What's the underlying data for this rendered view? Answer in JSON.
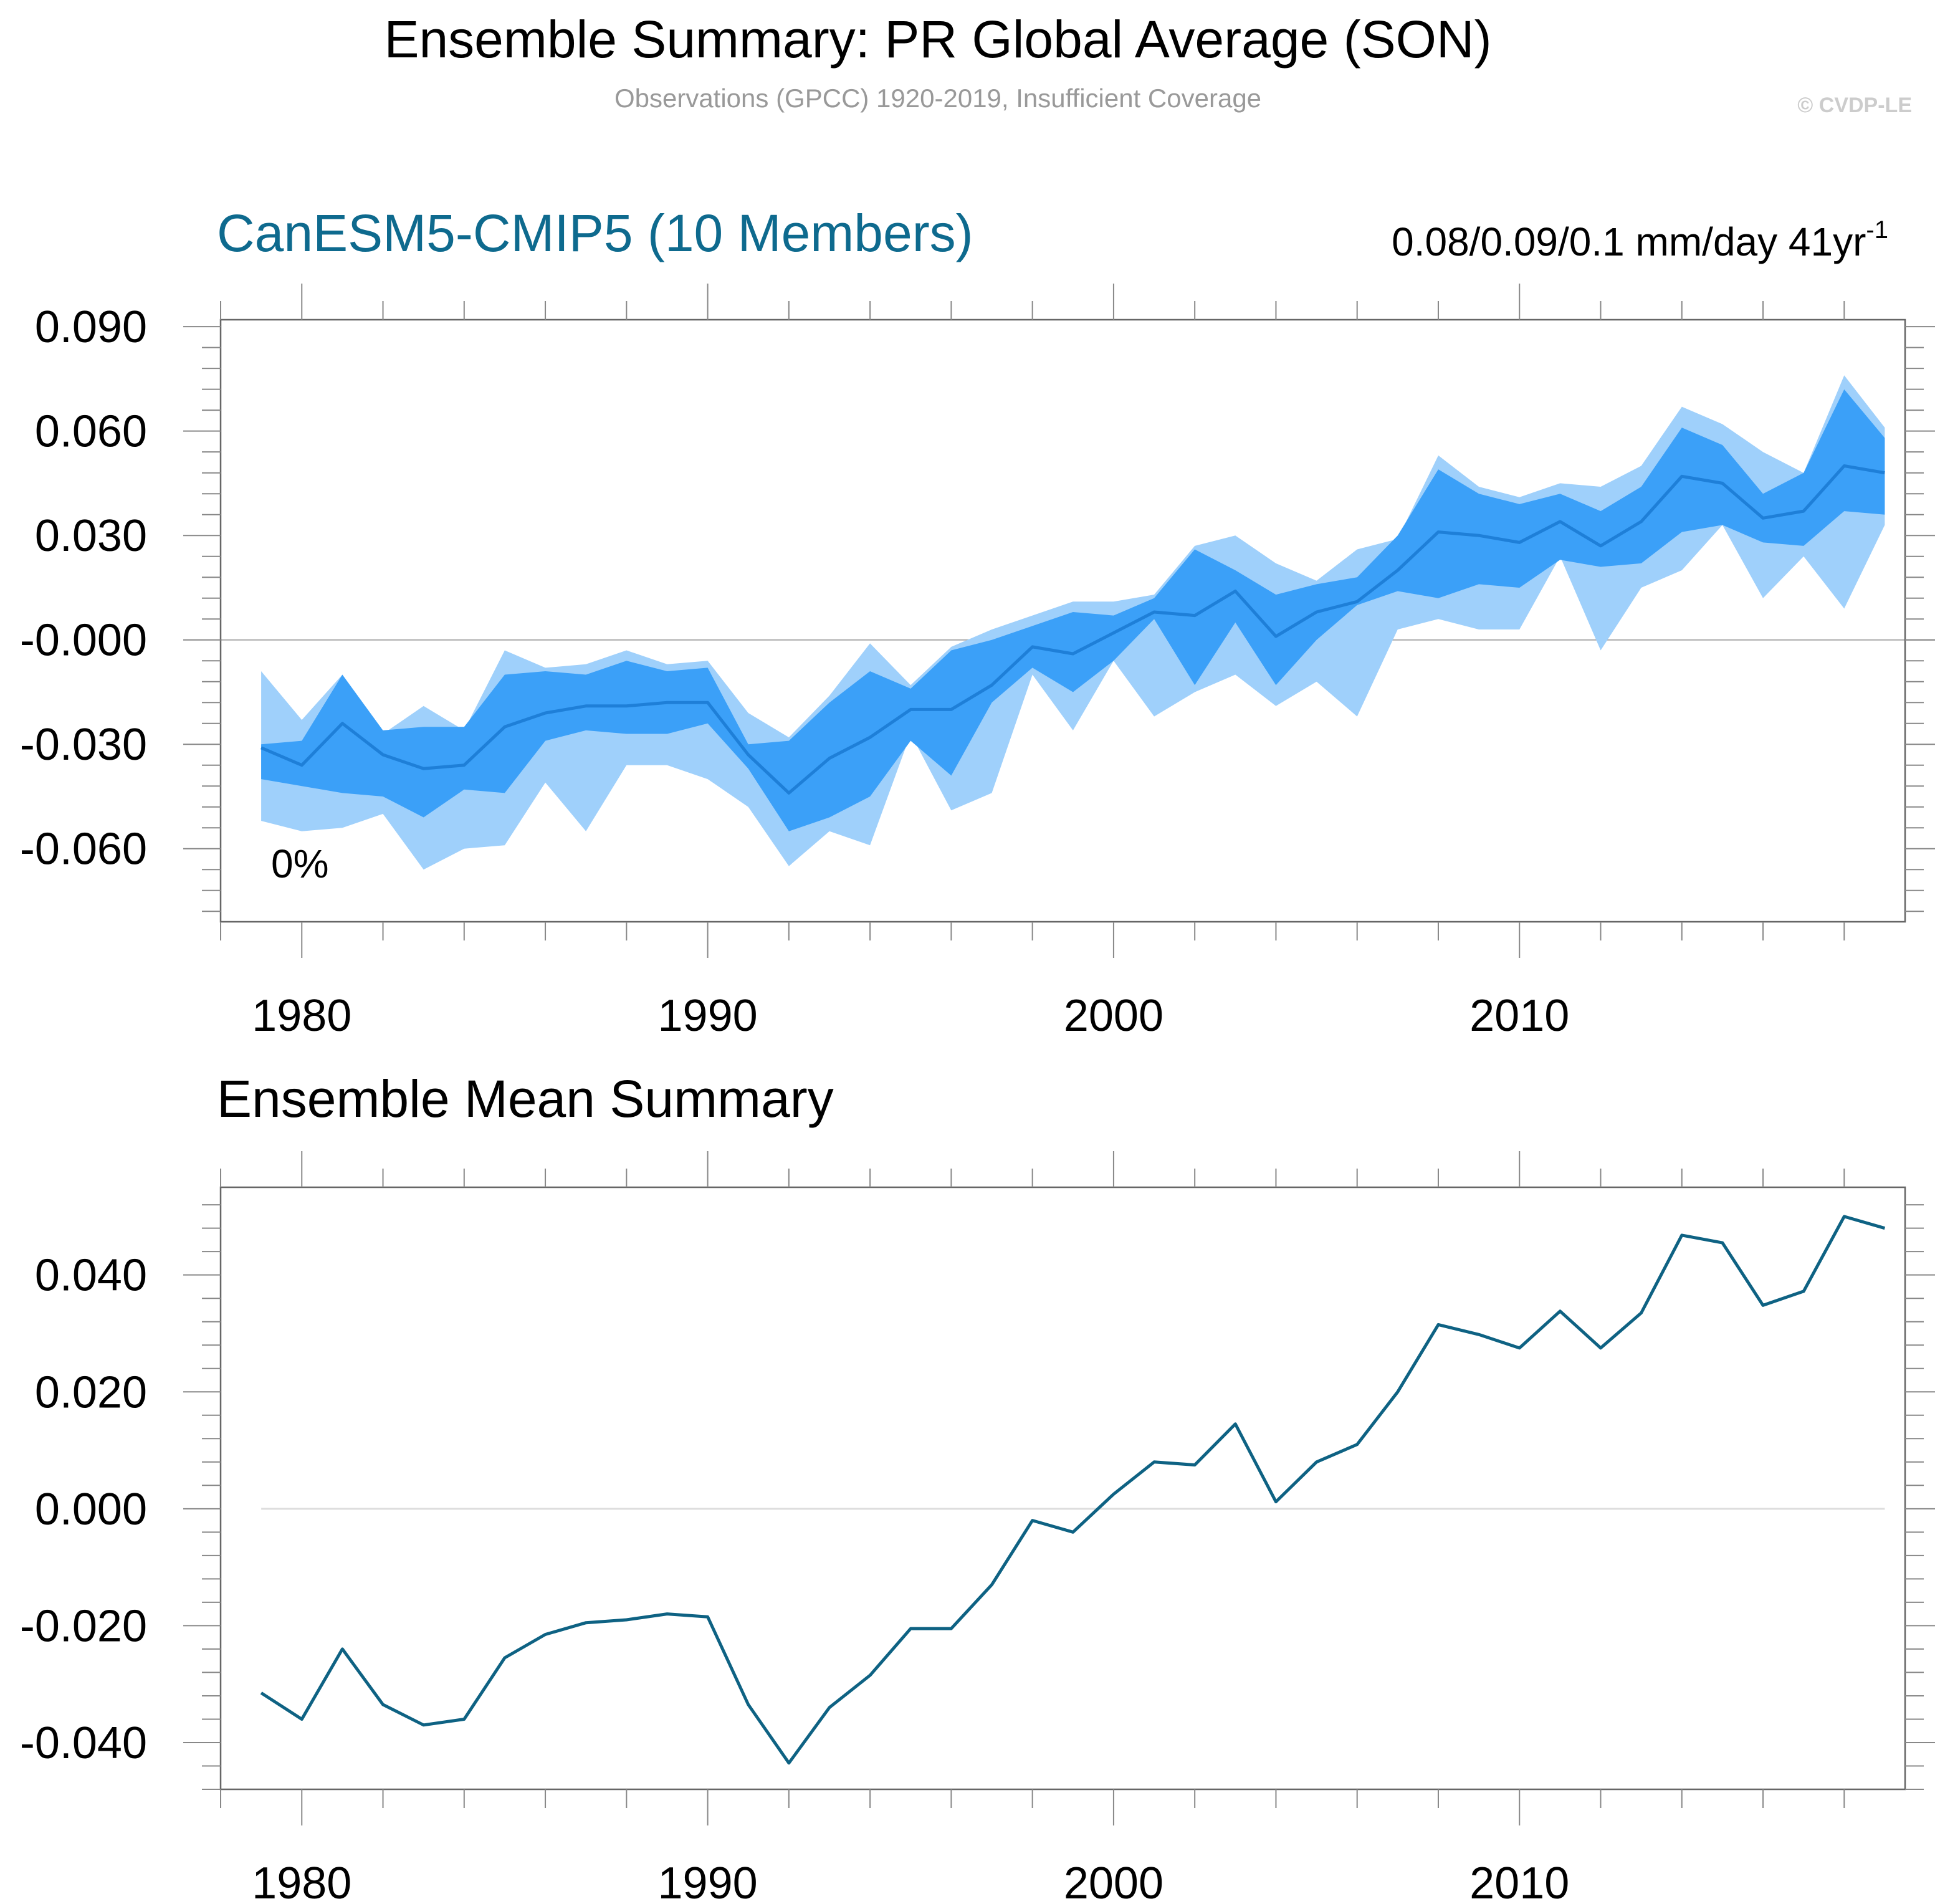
{
  "header": {
    "title": "Ensemble Summary: PR Global Average (SON)",
    "subtitle": "Observations (GPCC) 1920-2019, Insufficient Coverage",
    "copyright": "© CVDP-LE"
  },
  "colors": {
    "outer_band": "#9fd0fb",
    "inner_band": "#3ba0f8",
    "band_mean_line": "#1e7fd8",
    "mean_line": "#0e6283",
    "panel_title": "#0e6a8e",
    "subtitle": "#999999",
    "copyright": "#cccccc",
    "zero_line_top": "#aaaaaa",
    "zero_line_bottom": "#dddddd"
  },
  "chart_data": [
    {
      "type": "area",
      "title": "CanESM5-CMIP5 (10 Members)",
      "trend_text": "0.08/0.09/0.1 mm/day 41yr",
      "trend_sup": "-1",
      "annotation": "0%",
      "xlim": [
        1978,
        2019.5
      ],
      "ylim": [
        -0.081,
        0.092
      ],
      "xticks": [
        1980,
        1990,
        2000,
        2010
      ],
      "xtick_labels": [
        "1980",
        "1990",
        "2000",
        "2010"
      ],
      "yticks": [
        0.09,
        0.06,
        0.03,
        0.0,
        -0.03,
        -0.06
      ],
      "ytick_labels": [
        "0.090",
        "0.060",
        "0.030",
        "-0.000",
        "-0.030",
        "-0.060"
      ],
      "x": [
        1979,
        1980,
        1981,
        1982,
        1983,
        1984,
        1985,
        1986,
        1987,
        1988,
        1989,
        1990,
        1991,
        1992,
        1993,
        1994,
        1995,
        1996,
        1997,
        1998,
        1999,
        2000,
        2001,
        2002,
        2003,
        2004,
        2005,
        2006,
        2007,
        2008,
        2009,
        2010,
        2011,
        2012,
        2013,
        2014,
        2015,
        2016,
        2017,
        2018,
        2019
      ],
      "series": [
        {
          "values": [
            -0.009,
            -0.023,
            -0.01,
            -0.027,
            -0.019,
            -0.026,
            -0.003,
            -0.008,
            -0.007,
            -0.003,
            -0.007,
            -0.006,
            -0.021,
            -0.028,
            -0.016,
            -0.001,
            -0.013,
            -0.002,
            0.003,
            0.007,
            0.011,
            0.011,
            0.013,
            0.027,
            0.03,
            0.022,
            0.017,
            0.026,
            0.029,
            0.053,
            0.044,
            0.041,
            0.045,
            0.044,
            0.05,
            0.067,
            0.062,
            0.054,
            0.048,
            0.076,
            0.061
          ]
        },
        {
          "values": [
            -0.03,
            -0.029,
            -0.01,
            -0.026,
            -0.025,
            -0.025,
            -0.01,
            -0.009,
            -0.01,
            -0.006,
            -0.009,
            -0.008,
            -0.03,
            -0.029,
            -0.018,
            -0.009,
            -0.014,
            -0.003,
            0.0,
            0.004,
            0.008,
            0.007,
            0.012,
            0.026,
            0.02,
            0.013,
            0.016,
            0.018,
            0.03,
            0.049,
            0.042,
            0.039,
            0.042,
            0.037,
            0.044,
            0.061,
            0.056,
            0.042,
            0.048,
            0.072,
            0.058
          ]
        },
        {
          "values": [
            -0.031,
            -0.036,
            -0.024,
            -0.033,
            -0.037,
            -0.036,
            -0.025,
            -0.021,
            -0.019,
            -0.019,
            -0.018,
            -0.018,
            -0.033,
            -0.044,
            -0.034,
            -0.028,
            -0.02,
            -0.02,
            -0.013,
            -0.002,
            -0.004,
            0.002,
            0.008,
            0.007,
            0.014,
            0.001,
            0.008,
            0.011,
            0.02,
            0.031,
            0.03,
            0.028,
            0.034,
            0.027,
            0.034,
            0.047,
            0.045,
            0.035,
            0.037,
            0.05,
            0.048
          ]
        },
        {
          "values": [
            -0.04,
            -0.042,
            -0.044,
            -0.045,
            -0.051,
            -0.043,
            -0.044,
            -0.029,
            -0.026,
            -0.027,
            -0.027,
            -0.024,
            -0.037,
            -0.055,
            -0.051,
            -0.045,
            -0.029,
            -0.039,
            -0.018,
            -0.008,
            -0.015,
            -0.006,
            0.006,
            -0.013,
            0.005,
            -0.013,
            0.0,
            0.01,
            0.014,
            0.012,
            0.016,
            0.015,
            0.023,
            0.021,
            0.022,
            0.031,
            0.033,
            0.028,
            0.027,
            0.037,
            0.036
          ]
        },
        {
          "values": [
            -0.052,
            -0.055,
            -0.054,
            -0.05,
            -0.066,
            -0.06,
            -0.059,
            -0.041,
            -0.055,
            -0.036,
            -0.036,
            -0.04,
            -0.048,
            -0.065,
            -0.055,
            -0.059,
            -0.027,
            -0.049,
            -0.044,
            -0.01,
            -0.026,
            -0.006,
            -0.022,
            -0.015,
            -0.01,
            -0.019,
            -0.012,
            -0.022,
            0.003,
            0.006,
            0.003,
            0.003,
            0.024,
            -0.003,
            0.015,
            0.02,
            0.033,
            0.012,
            0.024,
            0.009,
            0.033
          ]
        }
      ]
    },
    {
      "type": "line",
      "title": "Ensemble Mean Summary",
      "xlim": [
        1978,
        2019.5
      ],
      "ylim": [
        -0.048,
        0.055
      ],
      "xticks": [
        1980,
        1990,
        2000,
        2010
      ],
      "xtick_labels": [
        "1980",
        "1990",
        "2000",
        "2010"
      ],
      "yticks": [
        0.04,
        0.02,
        0.0,
        -0.02,
        -0.04
      ],
      "ytick_labels": [
        "0.040",
        "0.020",
        "0.000",
        "-0.020",
        "-0.040"
      ],
      "x": [
        1979,
        1980,
        1981,
        1982,
        1983,
        1984,
        1985,
        1986,
        1987,
        1988,
        1989,
        1990,
        1991,
        1992,
        1993,
        1994,
        1995,
        1996,
        1997,
        1998,
        1999,
        2000,
        2001,
        2002,
        2003,
        2004,
        2005,
        2006,
        2007,
        2008,
        2009,
        2010,
        2011,
        2012,
        2013,
        2014,
        2015,
        2016,
        2017,
        2018,
        2019
      ],
      "series": [
        {
          "values": [
            -0.0315,
            -0.036,
            -0.024,
            -0.0335,
            -0.037,
            -0.036,
            -0.0255,
            -0.0215,
            -0.0195,
            -0.019,
            -0.018,
            -0.0185,
            -0.0335,
            -0.0435,
            -0.034,
            -0.0285,
            -0.0205,
            -0.0205,
            -0.013,
            -0.002,
            -0.004,
            0.0025,
            0.008,
            0.0075,
            0.0145,
            0.0012,
            0.008,
            0.011,
            0.02,
            0.0315,
            0.0298,
            0.0275,
            0.0338,
            0.0275,
            0.0335,
            0.0468,
            0.0455,
            0.0348,
            0.0372,
            0.05,
            0.048
          ]
        }
      ]
    }
  ]
}
